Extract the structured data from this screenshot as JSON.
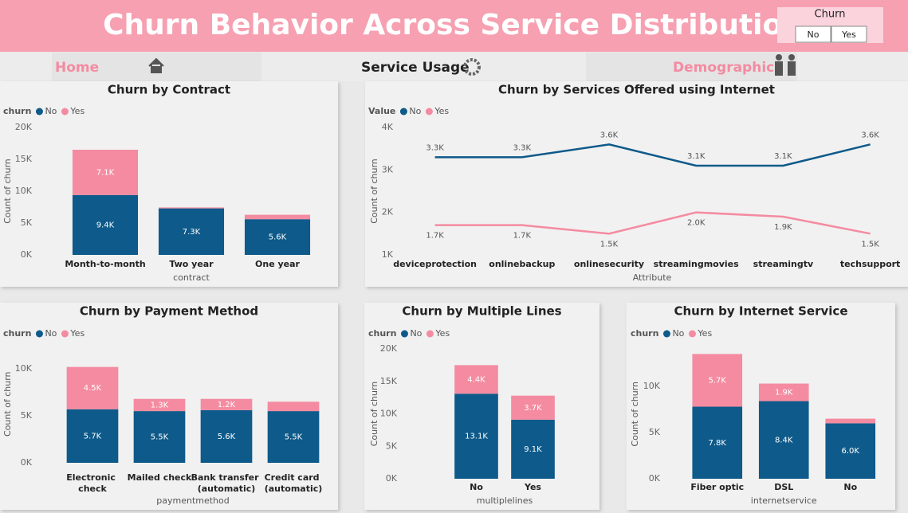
{
  "header": {
    "title": "Churn Behavior Across Service Distribution",
    "slicer": {
      "title": "Churn",
      "options": [
        "No",
        "Yes"
      ]
    }
  },
  "nav": [
    "Home",
    "Service Usage",
    "Demographics"
  ],
  "chart_data": [
    {
      "type": "stacked_bar",
      "title": "Churn by Contract",
      "legend_title": "churn",
      "x_label": "contract",
      "y_label": "Count of churn",
      "categories": [
        "Month-to-month",
        "Two year",
        "One year"
      ],
      "series": [
        {
          "name": "No",
          "color": "#0e5a8a",
          "values": [
            9400,
            7300,
            5600
          ],
          "value_labels": [
            "9.4K",
            "7.3K",
            "5.6K"
          ]
        },
        {
          "name": "Yes",
          "color": "#f48ba1",
          "values": [
            7100,
            150,
            700
          ],
          "value_labels": [
            "7.1K",
            null,
            null
          ]
        }
      ],
      "ylim": [
        0,
        20000
      ],
      "yticks": [
        {
          "value": 0,
          "label": "0K"
        },
        {
          "value": 5000,
          "label": "5K"
        },
        {
          "value": 10000,
          "label": "10K"
        },
        {
          "value": 15000,
          "label": "15K"
        },
        {
          "value": 20000,
          "label": "20K"
        }
      ],
      "grid": false
    },
    {
      "type": "line",
      "title": "Churn by Services Offered using Internet",
      "legend_title": "Value",
      "x_label": "Attribute",
      "y_label": "Count of churn",
      "categories": [
        "deviceprotection",
        "onlinebackup",
        "onlinesecurity",
        "streamingmovies",
        "streamingtv",
        "techsupport"
      ],
      "series": [
        {
          "name": "No",
          "color": "#0e5a8a",
          "values": [
            3300,
            3300,
            3600,
            3100,
            3100,
            3600
          ],
          "value_labels": [
            "3.3K",
            "3.3K",
            "3.6K",
            "3.1K",
            "3.1K",
            "3.6K"
          ]
        },
        {
          "name": "Yes",
          "color": "#f48ba1",
          "values": [
            1700,
            1700,
            1500,
            2000,
            1900,
            1500
          ],
          "value_labels": [
            "1.7K",
            "1.7K",
            "1.5K",
            "2.0K",
            "1.9K",
            "1.5K"
          ]
        }
      ],
      "ylim": [
        1000,
        4000
      ],
      "yticks": [
        {
          "value": 1000,
          "label": "1K"
        },
        {
          "value": 2000,
          "label": "2K"
        },
        {
          "value": 3000,
          "label": "3K"
        },
        {
          "value": 4000,
          "label": "4K"
        }
      ],
      "grid": false
    },
    {
      "type": "stacked_bar",
      "title": "Churn by Payment Method",
      "legend_title": "churn",
      "x_label": "paymentmethod",
      "y_label": "Count of churn",
      "categories": [
        "Electronic check",
        "Mailed check",
        "Bank transfer (automatic)",
        "Credit card (automatic)"
      ],
      "series": [
        {
          "name": "No",
          "color": "#0e5a8a",
          "values": [
            5700,
            5500,
            5600,
            5500
          ],
          "value_labels": [
            "5.7K",
            "5.5K",
            "5.6K",
            "5.5K"
          ]
        },
        {
          "name": "Yes",
          "color": "#f48ba1",
          "values": [
            4500,
            1300,
            1200,
            1000
          ],
          "value_labels": [
            "4.5K",
            "1.3K",
            "1.2K",
            null
          ]
        }
      ],
      "ylim": [
        0,
        12500
      ],
      "yticks": [
        {
          "value": 0,
          "label": "0K"
        },
        {
          "value": 5000,
          "label": "5K"
        },
        {
          "value": 10000,
          "label": "10K"
        }
      ],
      "grid": false
    },
    {
      "type": "stacked_bar",
      "title": "Churn by Multiple Lines",
      "legend_title": "churn",
      "x_label": "multiplelines",
      "y_label": "Count of churn",
      "categories": [
        "No",
        "Yes"
      ],
      "series": [
        {
          "name": "No",
          "color": "#0e5a8a",
          "values": [
            13100,
            9100
          ],
          "value_labels": [
            "13.1K",
            "9.1K"
          ]
        },
        {
          "name": "Yes",
          "color": "#f48ba1",
          "values": [
            4400,
            3700
          ],
          "value_labels": [
            "4.4K",
            "3.7K"
          ]
        }
      ],
      "ylim": [
        0,
        20000
      ],
      "yticks": [
        {
          "value": 0,
          "label": "0K"
        },
        {
          "value": 5000,
          "label": "5K"
        },
        {
          "value": 10000,
          "label": "10K"
        },
        {
          "value": 15000,
          "label": "15K"
        },
        {
          "value": 20000,
          "label": "20K"
        }
      ],
      "grid": false
    },
    {
      "type": "stacked_bar",
      "title": "Churn by Internet Service",
      "legend_title": "churn",
      "x_label": "internetservice",
      "y_label": "Count of churn",
      "categories": [
        "Fiber optic",
        "DSL",
        "No"
      ],
      "series": [
        {
          "name": "No",
          "color": "#0e5a8a",
          "values": [
            7800,
            8400,
            6000
          ],
          "value_labels": [
            "7.8K",
            "8.4K",
            "6.0K"
          ]
        },
        {
          "name": "Yes",
          "color": "#f48ba1",
          "values": [
            5700,
            1900,
            500
          ],
          "value_labels": [
            "5.7K",
            "1.9K",
            null
          ]
        }
      ],
      "ylim": [
        0,
        14000
      ],
      "yticks": [
        {
          "value": 0,
          "label": "0K"
        },
        {
          "value": 5000,
          "label": "5K"
        },
        {
          "value": 10000,
          "label": "10K"
        }
      ],
      "grid": false
    }
  ]
}
